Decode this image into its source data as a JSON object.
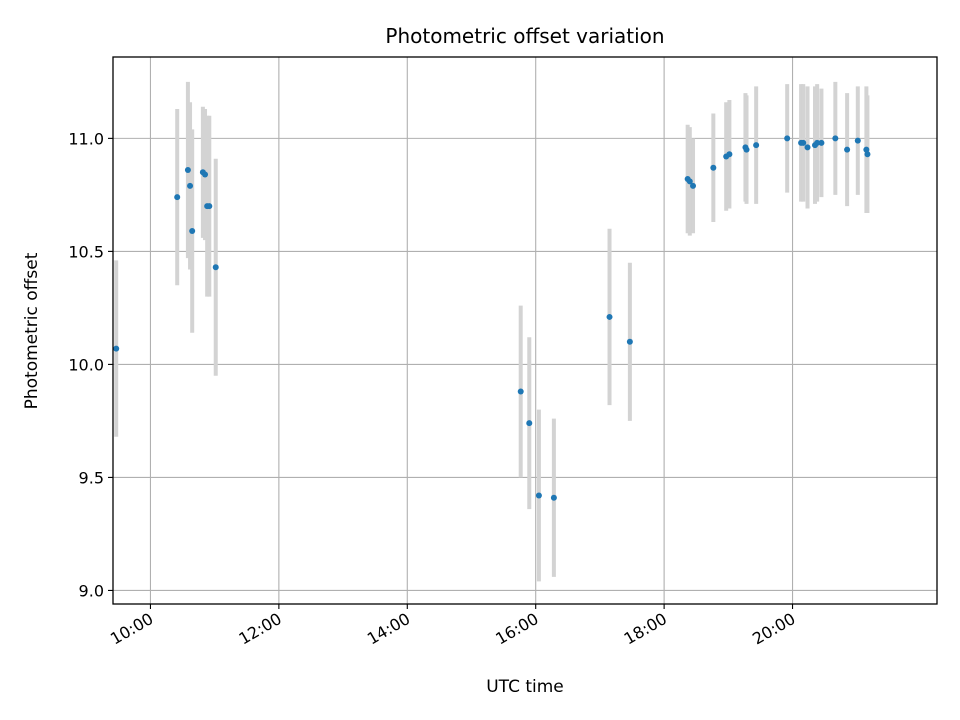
{
  "chart_data": {
    "type": "scatter",
    "title": "Photometric offset variation",
    "xlabel": "UTC time",
    "ylabel": "Photometric offset",
    "xlim": [
      "09:25",
      "22:15"
    ],
    "ylim": [
      8.94,
      11.36
    ],
    "x_ticks": [
      "10:00",
      "12:00",
      "14:00",
      "16:00",
      "18:00",
      "20:00"
    ],
    "y_ticks": [
      9.0,
      9.5,
      10.0,
      10.5,
      11.0
    ],
    "y_tick_labels": [
      "9.0",
      "9.5",
      "10.0",
      "10.5",
      "11.0"
    ],
    "grid": true,
    "errorbar_color": "#d3d3d3",
    "point_color": "#1f77b4",
    "points": [
      {
        "x": "09:28",
        "y": 10.07,
        "err": 0.39
      },
      {
        "x": "10:25",
        "y": 10.74,
        "err": 0.39
      },
      {
        "x": "10:35",
        "y": 10.86,
        "err": 0.39
      },
      {
        "x": "10:37",
        "y": 10.79,
        "err": 0.37
      },
      {
        "x": "10:39",
        "y": 10.59,
        "err": 0.45
      },
      {
        "x": "10:49",
        "y": 10.85,
        "err": 0.29
      },
      {
        "x": "10:51",
        "y": 10.84,
        "err": 0.29
      },
      {
        "x": "10:53",
        "y": 10.7,
        "err": 0.4
      },
      {
        "x": "10:55",
        "y": 10.7,
        "err": 0.4
      },
      {
        "x": "11:01",
        "y": 10.43,
        "err": 0.48
      },
      {
        "x": "15:46",
        "y": 9.88,
        "err": 0.38
      },
      {
        "x": "15:54",
        "y": 9.74,
        "err": 0.38
      },
      {
        "x": "16:03",
        "y": 9.42,
        "err": 0.38
      },
      {
        "x": "16:17",
        "y": 9.41,
        "err": 0.35
      },
      {
        "x": "17:09",
        "y": 10.21,
        "err": 0.39
      },
      {
        "x": "17:28",
        "y": 10.1,
        "err": 0.35
      },
      {
        "x": "18:22",
        "y": 10.82,
        "err": 0.24
      },
      {
        "x": "18:24",
        "y": 10.81,
        "err": 0.24
      },
      {
        "x": "18:27",
        "y": 10.79,
        "err": 0.21
      },
      {
        "x": "18:46",
        "y": 10.87,
        "err": 0.24
      },
      {
        "x": "18:58",
        "y": 10.92,
        "err": 0.24
      },
      {
        "x": "19:01",
        "y": 10.93,
        "err": 0.24
      },
      {
        "x": "19:16",
        "y": 10.96,
        "err": 0.24
      },
      {
        "x": "19:17",
        "y": 10.95,
        "err": 0.24
      },
      {
        "x": "19:26",
        "y": 10.97,
        "err": 0.26
      },
      {
        "x": "19:55",
        "y": 11.0,
        "err": 0.24
      },
      {
        "x": "20:08",
        "y": 10.98,
        "err": 0.26
      },
      {
        "x": "20:10",
        "y": 10.98,
        "err": 0.26
      },
      {
        "x": "20:14",
        "y": 10.96,
        "err": 0.27
      },
      {
        "x": "20:21",
        "y": 10.97,
        "err": 0.26
      },
      {
        "x": "20:23",
        "y": 10.98,
        "err": 0.26
      },
      {
        "x": "20:27",
        "y": 10.98,
        "err": 0.24
      },
      {
        "x": "20:40",
        "y": 11.0,
        "err": 0.25
      },
      {
        "x": "20:51",
        "y": 10.95,
        "err": 0.25
      },
      {
        "x": "21:01",
        "y": 10.99,
        "err": 0.24
      },
      {
        "x": "21:09",
        "y": 10.95,
        "err": 0.28
      },
      {
        "x": "21:10",
        "y": 10.93,
        "err": 0.26
      }
    ]
  }
}
